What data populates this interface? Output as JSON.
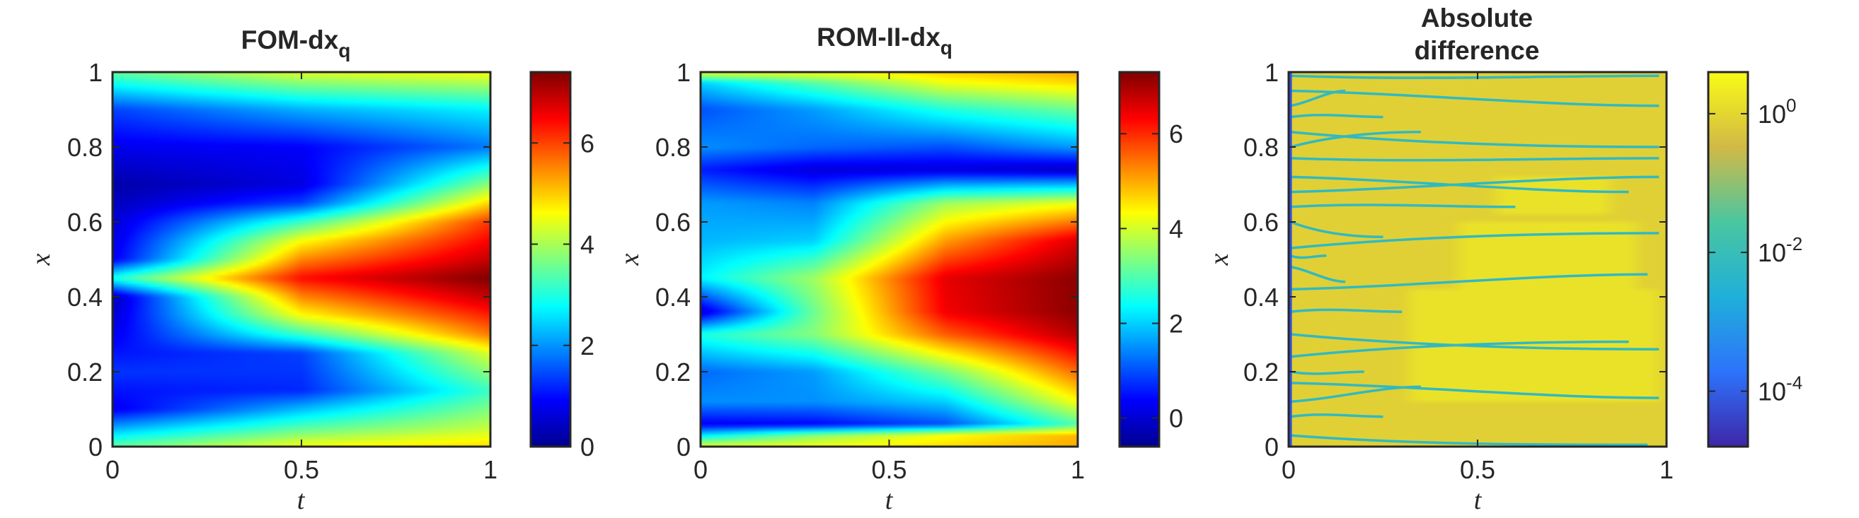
{
  "chart_data": [
    {
      "type": "heatmap",
      "title": "FOM-dx",
      "title_subscript": "q",
      "title_lines": [],
      "xlabel": "t",
      "ylabel": "x",
      "xlim": [
        0,
        1
      ],
      "ylim": [
        0,
        1
      ],
      "xticks": [
        "0",
        "0.5",
        "1"
      ],
      "yticks": [
        "0",
        "0.2",
        "0.4",
        "0.6",
        "0.8",
        "1"
      ],
      "colormap": "jet",
      "colorbar": {
        "range": [
          0,
          7.4
        ],
        "ticks": [
          "0",
          "2",
          "4",
          "6"
        ],
        "scale": "linear"
      },
      "field": [
        {
          "t": 0.0,
          "x": [
            0.0,
            0.1,
            0.2,
            0.3,
            0.4,
            0.45,
            0.5,
            0.6,
            0.7,
            0.8,
            0.9,
            1.0
          ],
          "v": [
            3.5,
            0.8,
            1.3,
            0.8,
            0.4,
            3.0,
            0.8,
            0.6,
            0.3,
            0.8,
            1.4,
            3.5
          ]
        },
        {
          "t": 0.5,
          "x": [
            0.0,
            0.05,
            0.15,
            0.25,
            0.3,
            0.35,
            0.45,
            0.55,
            0.6,
            0.65,
            0.7,
            0.8,
            0.9,
            1.0
          ],
          "v": [
            4.6,
            3.4,
            1.2,
            1.4,
            3.2,
            4.6,
            6.4,
            4.6,
            3.2,
            1.4,
            0.7,
            0.9,
            2.2,
            4.4
          ]
        },
        {
          "t": 1.0,
          "x": [
            0.0,
            0.05,
            0.15,
            0.25,
            0.3,
            0.4,
            0.45,
            0.5,
            0.6,
            0.7,
            0.8,
            0.9,
            1.0
          ],
          "v": [
            4.9,
            4.2,
            3.2,
            4.4,
            5.6,
            6.9,
            7.4,
            6.9,
            6.1,
            3.8,
            1.8,
            2.7,
            4.6
          ]
        }
      ]
    },
    {
      "type": "heatmap",
      "title": "ROM-II-dx",
      "title_subscript": "q",
      "title_lines": [],
      "xlabel": "t",
      "ylabel": "x",
      "xlim": [
        0,
        1
      ],
      "ylim": [
        0,
        1
      ],
      "xticks": [
        "0",
        "0.5",
        "1"
      ],
      "yticks": [
        "0",
        "0.2",
        "0.4",
        "0.6",
        "0.8",
        "1"
      ],
      "colormap": "jet",
      "colorbar": {
        "range": [
          -0.6,
          7.3
        ],
        "ticks": [
          "0",
          "2",
          "4",
          "6"
        ],
        "scale": "linear"
      },
      "field": [
        {
          "t": 0.0,
          "x": [
            0.0,
            0.03,
            0.06,
            0.12,
            0.2,
            0.3,
            0.36,
            0.45,
            0.55,
            0.65,
            0.74,
            0.8,
            0.9,
            0.97,
            1.0
          ],
          "v": [
            4.2,
            2.2,
            0.3,
            1.5,
            1.2,
            2.6,
            0.0,
            2.3,
            1.8,
            1.6,
            0.6,
            1.5,
            1.0,
            2.0,
            4.2
          ]
        },
        {
          "t": 0.3,
          "x": [
            0.0,
            0.03,
            0.06,
            0.12,
            0.2,
            0.3,
            0.36,
            0.45,
            0.55,
            0.65,
            0.74,
            0.8,
            0.9,
            0.97,
            1.0
          ],
          "v": [
            4.3,
            3.4,
            0.4,
            1.5,
            1.6,
            3.4,
            3.2,
            3.6,
            2.0,
            1.4,
            0.1,
            1.2,
            1.6,
            3.0,
            4.3
          ]
        },
        {
          "t": 0.65,
          "x": [
            0.0,
            0.03,
            0.06,
            0.12,
            0.2,
            0.3,
            0.36,
            0.45,
            0.55,
            0.65,
            0.74,
            0.8,
            0.9,
            0.97,
            1.0
          ],
          "v": [
            4.6,
            4.3,
            1.0,
            2.0,
            3.3,
            5.6,
            6.4,
            6.5,
            5.1,
            3.6,
            0.1,
            1.0,
            2.6,
            4.2,
            4.7
          ]
        },
        {
          "t": 1.0,
          "x": [
            0.0,
            0.03,
            0.06,
            0.12,
            0.2,
            0.3,
            0.36,
            0.45,
            0.55,
            0.65,
            0.74,
            0.8,
            0.9,
            0.97,
            1.0
          ],
          "v": [
            5.0,
            4.9,
            3.0,
            4.3,
            5.5,
            6.9,
            7.2,
            7.2,
            6.6,
            4.2,
            -0.1,
            1.6,
            3.2,
            4.6,
            5.0
          ]
        }
      ]
    },
    {
      "type": "heatmap",
      "title": "",
      "title_subscript": "",
      "title_lines": [
        "Absolute",
        "difference"
      ],
      "xlabel": "t",
      "ylabel": "x",
      "xlim": [
        0,
        1
      ],
      "ylim": [
        0,
        1
      ],
      "xticks": [
        "0",
        "0.5",
        "1"
      ],
      "yticks": [
        "0",
        "0.2",
        "0.4",
        "0.6",
        "0.8",
        "1"
      ],
      "colormap": "parula",
      "colorbar": {
        "range": [
          -4.8,
          0.6
        ],
        "scale": "log",
        "ticks": [
          {
            "base": "10",
            "exp": "0",
            "log10": 0
          },
          {
            "base": "10",
            "exp": "-2",
            "log10": -2
          },
          {
            "base": "10",
            "exp": "-4",
            "log10": -4
          }
        ]
      },
      "field_description_log10": {
        "background": -0.1,
        "bright_regions_log10": 0.3,
        "low_contours_log10": -2.2,
        "contours_x_at_t0": [
          0.03,
          0.08,
          0.12,
          0.17,
          0.2,
          0.24,
          0.3,
          0.36,
          0.42,
          0.48,
          0.51,
          0.53,
          0.6,
          0.64,
          0.68,
          0.72,
          0.77,
          0.8,
          0.84,
          0.88,
          0.91,
          0.95,
          0.99
        ]
      }
    }
  ]
}
